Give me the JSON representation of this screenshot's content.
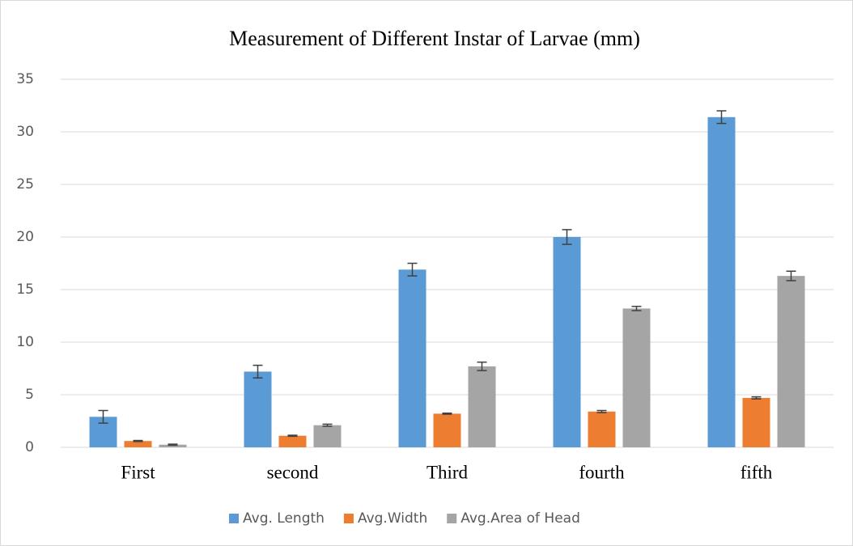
{
  "chart_data": {
    "type": "bar",
    "title": "Measurement of Different Instar of Larvae (mm)",
    "categories": [
      "First",
      "second",
      "Third",
      "fourth",
      "fifth"
    ],
    "series": [
      {
        "name": "Avg. Length",
        "color": "#5b9bd5",
        "values": [
          2.9,
          7.2,
          16.9,
          20.0,
          31.4
        ],
        "errors": [
          0.6,
          0.6,
          0.6,
          0.7,
          0.6
        ]
      },
      {
        "name": "Avg.Width",
        "color": "#ed7d31",
        "values": [
          0.6,
          1.1,
          3.2,
          3.4,
          4.7
        ],
        "errors": [
          0.05,
          0.05,
          0.05,
          0.1,
          0.1
        ]
      },
      {
        "name": "Avg.Area of Head",
        "color": "#a5a5a5",
        "values": [
          0.25,
          2.1,
          7.7,
          13.2,
          16.3
        ],
        "errors": [
          0.05,
          0.1,
          0.4,
          0.2,
          0.45
        ]
      }
    ],
    "ylim": [
      0,
      35
    ],
    "yticks": [
      0,
      5,
      10,
      15,
      20,
      25,
      30,
      35
    ],
    "grid": true,
    "legend": "bottom"
  }
}
